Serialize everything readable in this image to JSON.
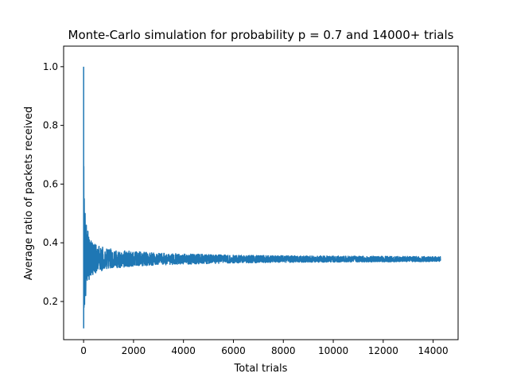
{
  "chart_data": {
    "type": "line",
    "title": "Monte-Carlo simulation for probability p = 0.7 and 14000+ trials",
    "xlabel": "Total trials",
    "ylabel": "Average ratio of packets received",
    "xlim": [
      -800,
      15000
    ],
    "ylim": [
      0.07,
      1.07
    ],
    "x_ticks": [
      0,
      2000,
      4000,
      6000,
      8000,
      10000,
      12000,
      14000
    ],
    "x_tick_labels": [
      "0",
      "2000",
      "4000",
      "6000",
      "8000",
      "10000",
      "12000",
      "14000"
    ],
    "y_ticks": [
      0.2,
      0.4,
      0.6,
      0.8,
      1.0
    ],
    "y_tick_labels": [
      "0.2",
      "0.4",
      "0.6",
      "0.8",
      "1.0"
    ],
    "grid": false,
    "legend": "none",
    "series": [
      {
        "color": "#1f77b4",
        "x_range": [
          1,
          14300
        ],
        "description_values": {
          "converged_mean": 0.343,
          "max": 1.0,
          "min": 0.11
        },
        "envelope": {
          "x": [
            1,
            10,
            30,
            60,
            100,
            150,
            200,
            300,
            500,
            800,
            1000,
            1500,
            2000,
            3000,
            4000,
            5000,
            6000,
            8000,
            10000,
            12000,
            14300
          ],
          "upper": [
            1.0,
            0.67,
            0.55,
            0.51,
            0.47,
            0.45,
            0.43,
            0.41,
            0.395,
            0.385,
            0.38,
            0.375,
            0.37,
            0.365,
            0.362,
            0.36,
            0.358,
            0.356,
            0.355,
            0.354,
            0.353
          ],
          "lower": [
            0.11,
            0.15,
            0.16,
            0.2,
            0.24,
            0.26,
            0.27,
            0.285,
            0.295,
            0.305,
            0.31,
            0.316,
            0.32,
            0.324,
            0.327,
            0.329,
            0.331,
            0.333,
            0.334,
            0.335,
            0.336
          ]
        }
      }
    ]
  }
}
